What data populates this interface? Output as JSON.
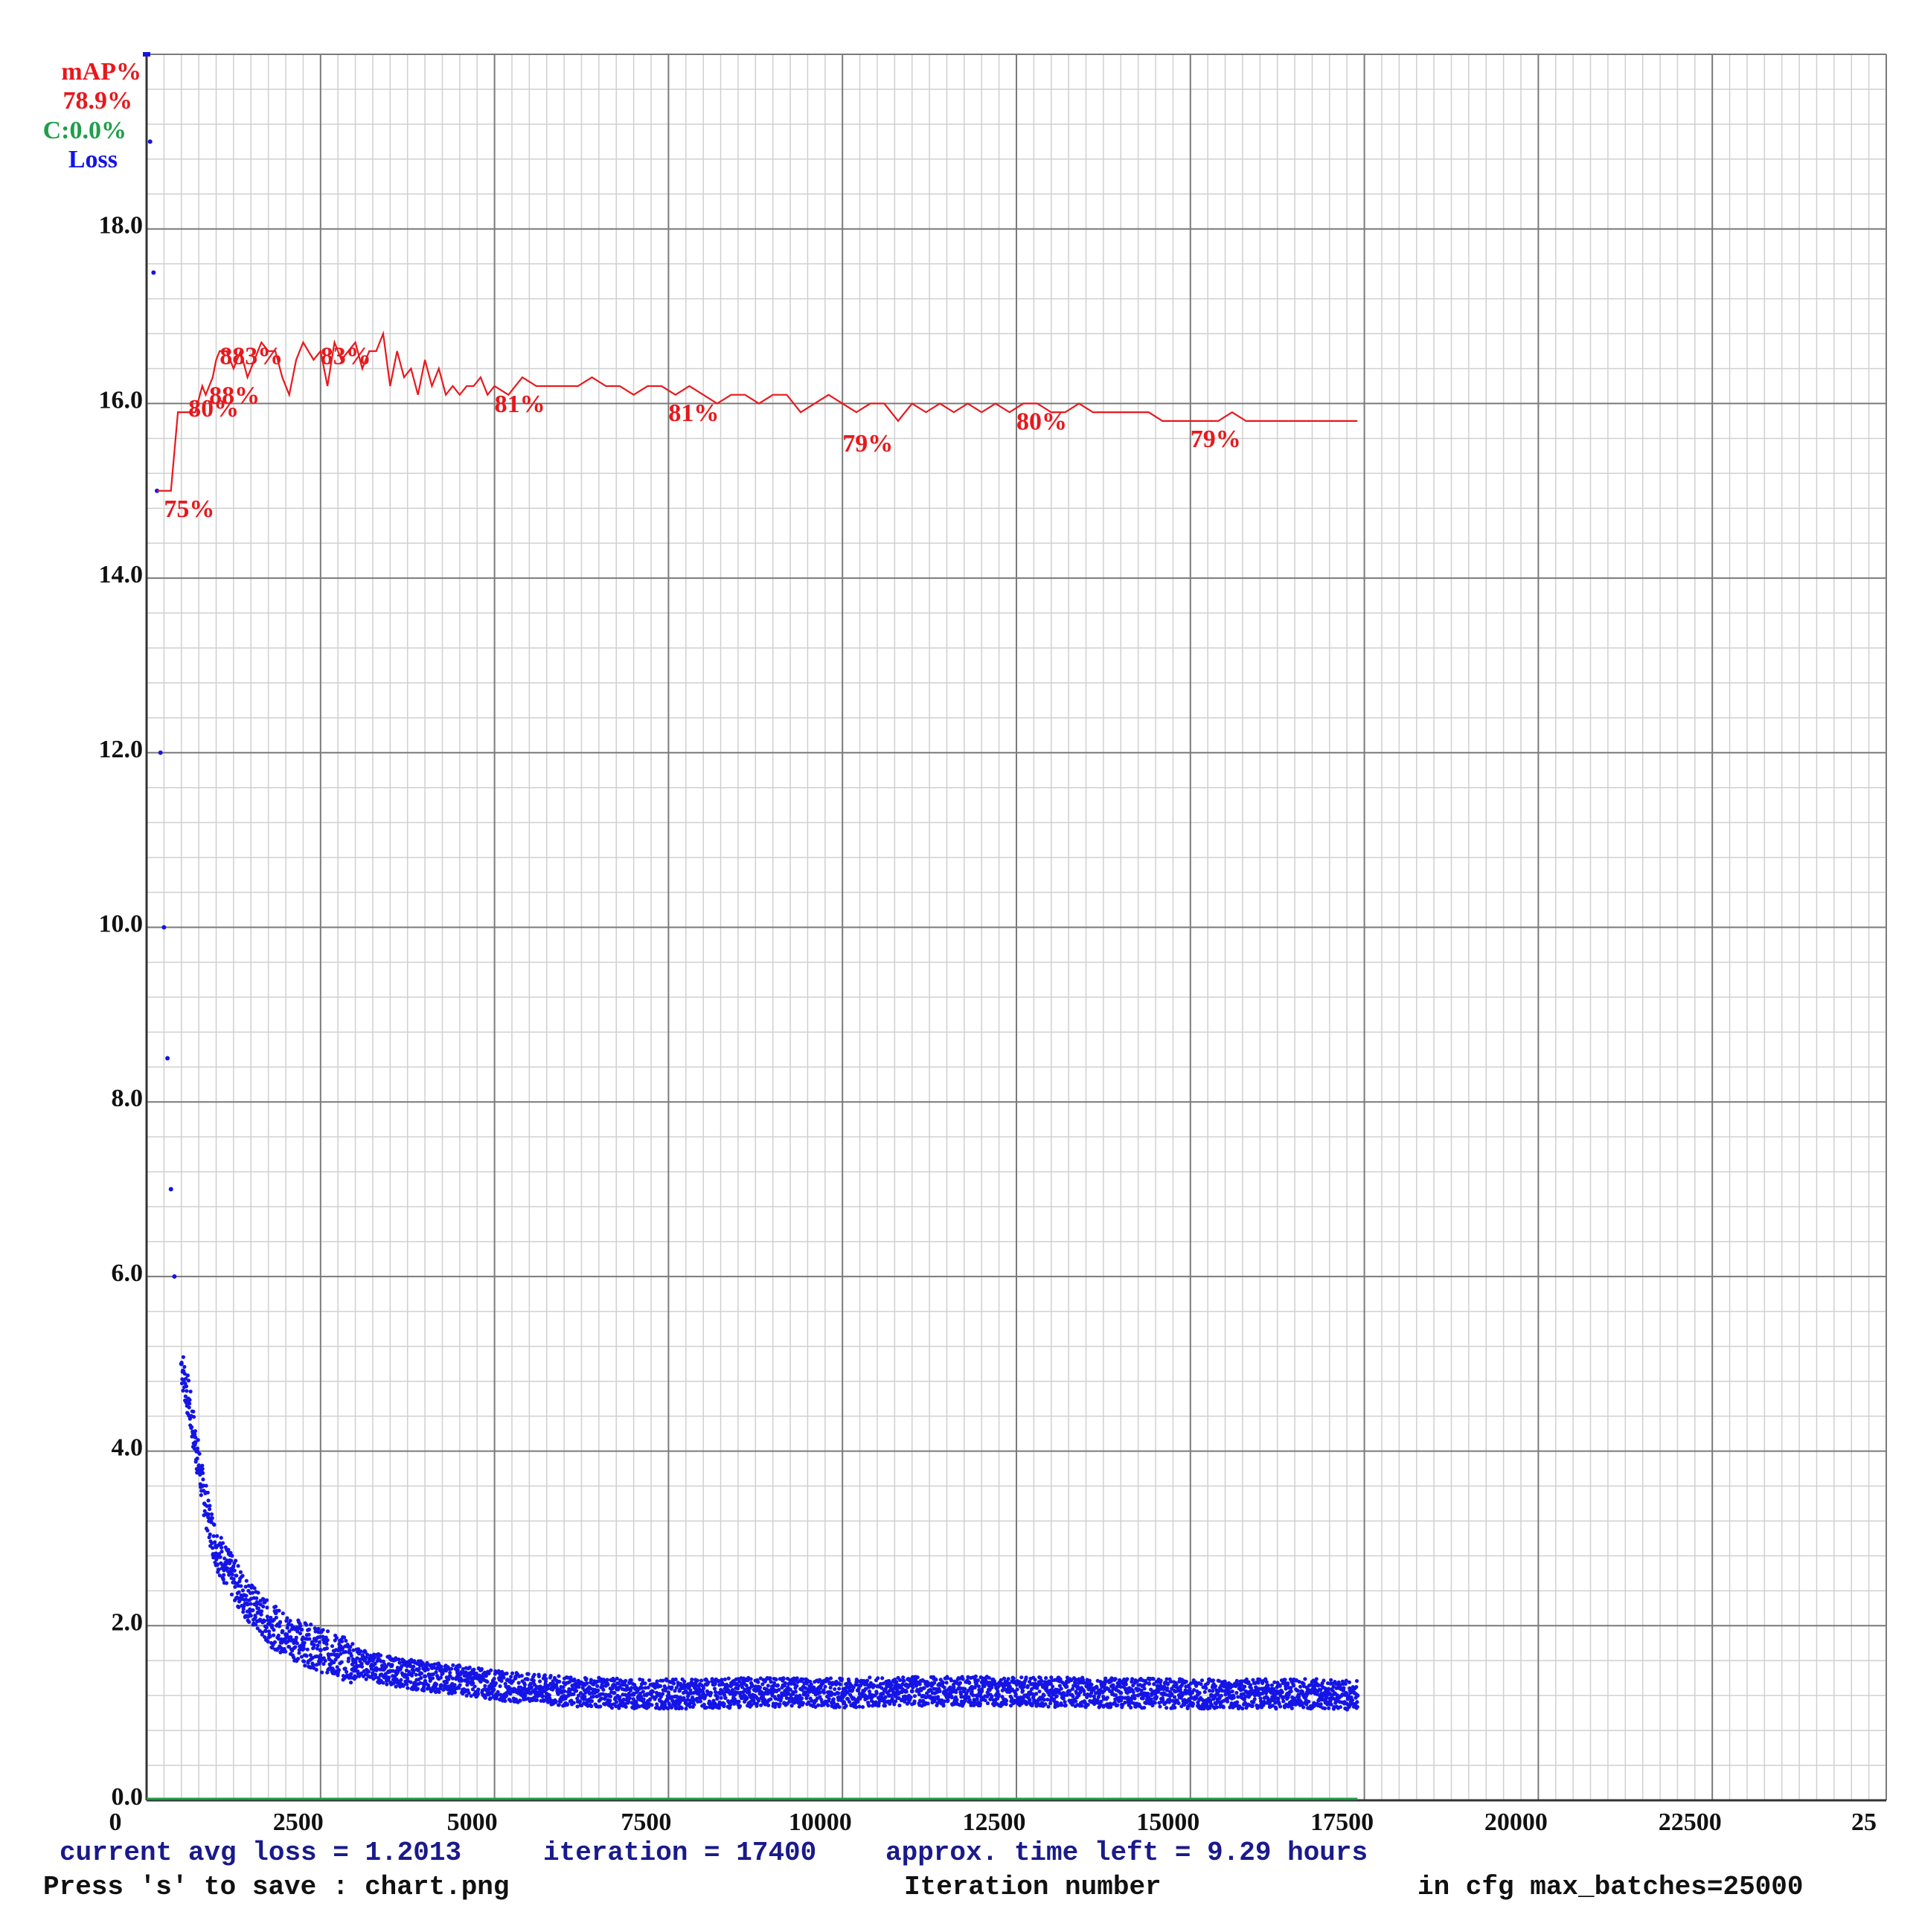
{
  "colors": {
    "map": "#e8181c",
    "loss": "#1414e6",
    "accuracy": "#1f9e4a",
    "footer_info": "#1a1a8c",
    "text": "#111111",
    "grid_major": "#7a7a7a",
    "grid_minor": "#d0d0d0"
  },
  "legend": {
    "map_label": "mAP%",
    "map_value": "78.9%",
    "accuracy_label": "C:0.0%",
    "loss_label": "Loss"
  },
  "footer": {
    "avg_loss": "current avg loss = 1.2013",
    "iteration": "iteration = 17400",
    "time_left": "approx. time left = 9.29 hours",
    "save_hint": "Press 's' to save : chart.png",
    "xlabel": "Iteration number",
    "max_batches": "in cfg max_batches=25000"
  },
  "chart_data": {
    "type": "line",
    "xlabel": "Iteration number",
    "xlim": [
      0,
      25000
    ],
    "ylim": [
      0,
      20
    ],
    "grid": true,
    "x_tick_labels": [
      "0",
      "2500",
      "5000",
      "7500",
      "10000",
      "12500",
      "15000",
      "17500",
      "20000",
      "22500",
      "25"
    ],
    "y_tick_labels": [
      "0.0",
      "2.0",
      "4.0",
      "6.0",
      "8.0",
      "10.0",
      "12.0",
      "14.0",
      "16.0",
      "18.0"
    ],
    "series": [
      {
        "name": "Loss",
        "style": "scatter",
        "x": [
          0,
          50,
          100,
          150,
          200,
          250,
          300,
          350,
          400,
          500,
          600,
          700,
          800,
          900,
          1000,
          1200,
          1400,
          1600,
          1800,
          2000,
          2250,
          2500,
          2750,
          3000,
          3500,
          4000,
          4500,
          5000,
          5500,
          6000,
          7000,
          8000,
          9000,
          10000,
          11000,
          12000,
          13000,
          14000,
          15000,
          16000,
          17000,
          17400
        ],
        "y": [
          20,
          19,
          17.5,
          15,
          12,
          10,
          8.5,
          7,
          6,
          5,
          4.6,
          4.1,
          3.6,
          3.2,
          2.9,
          2.6,
          2.35,
          2.15,
          2.0,
          1.9,
          1.8,
          1.72,
          1.65,
          1.58,
          1.48,
          1.42,
          1.38,
          1.32,
          1.28,
          1.25,
          1.22,
          1.22,
          1.24,
          1.23,
          1.25,
          1.25,
          1.24,
          1.23,
          1.22,
          1.22,
          1.22,
          1.2
        ]
      },
      {
        "name": "mAP%",
        "style": "line",
        "x": [
          150,
          350,
          450,
          550,
          650,
          700,
          800,
          850,
          900,
          950,
          1000,
          1050,
          1150,
          1250,
          1350,
          1450,
          1550,
          1650,
          1750,
          1850,
          1950,
          2050,
          2150,
          2250,
          2400,
          2500,
          2600,
          2700,
          2800,
          2900,
          3000,
          3100,
          3200,
          3300,
          3400,
          3500,
          3600,
          3700,
          3800,
          3900,
          4000,
          4100,
          4200,
          4300,
          4400,
          4500,
          4600,
          4700,
          4800,
          4900,
          5000,
          5200,
          5400,
          5600,
          5800,
          6000,
          6200,
          6400,
          6600,
          6800,
          7000,
          7200,
          7400,
          7600,
          7800,
          8000,
          8200,
          8400,
          8600,
          8800,
          9000,
          9200,
          9400,
          9600,
          9800,
          10000,
          10200,
          10400,
          10600,
          10800,
          11000,
          11200,
          11400,
          11600,
          11800,
          12000,
          12200,
          12400,
          12600,
          12800,
          13000,
          13200,
          13400,
          13600,
          13800,
          14000,
          14200,
          14400,
          14600,
          14800,
          15000,
          15200,
          15400,
          15600,
          15800,
          16000,
          16200,
          16400,
          16600,
          16800,
          17000,
          17200,
          17400
        ],
        "y": [
          15.0,
          15.0,
          15.9,
          15.9,
          15.9,
          15.9,
          16.2,
          16.1,
          16.2,
          16.3,
          16.5,
          16.6,
          16.6,
          16.4,
          16.6,
          16.3,
          16.5,
          16.7,
          16.6,
          16.6,
          16.3,
          16.1,
          16.5,
          16.7,
          16.5,
          16.6,
          16.2,
          16.7,
          16.5,
          16.6,
          16.7,
          16.4,
          16.6,
          16.6,
          16.8,
          16.2,
          16.6,
          16.3,
          16.4,
          16.1,
          16.5,
          16.2,
          16.4,
          16.1,
          16.2,
          16.1,
          16.2,
          16.2,
          16.3,
          16.1,
          16.2,
          16.1,
          16.3,
          16.2,
          16.2,
          16.2,
          16.2,
          16.3,
          16.2,
          16.2,
          16.1,
          16.2,
          16.2,
          16.1,
          16.2,
          16.1,
          16.0,
          16.1,
          16.1,
          16.0,
          16.1,
          16.1,
          15.9,
          16.0,
          16.1,
          16.0,
          15.9,
          16.0,
          16.0,
          15.8,
          16.0,
          15.9,
          16.0,
          15.9,
          16.0,
          15.9,
          16.0,
          15.9,
          16.0,
          16.0,
          15.9,
          15.9,
          16.0,
          15.9,
          15.9,
          15.9,
          15.9,
          15.9,
          15.8,
          15.8,
          15.8,
          15.8,
          15.8,
          15.9,
          15.8,
          15.8,
          15.8,
          15.8,
          15.8,
          15.8,
          15.8,
          15.8,
          15.8
        ]
      },
      {
        "name": "C:0.0%",
        "style": "line",
        "x": [
          0,
          17400
        ],
        "y": [
          0,
          0
        ]
      }
    ],
    "annotations": [
      {
        "text": "75%",
        "x": 250,
        "y": 14.7
      },
      {
        "text": "80%",
        "x": 600,
        "y": 15.85
      },
      {
        "text": "88%",
        "x": 900,
        "y": 16.0
      },
      {
        "text": "883%",
        "x": 1050,
        "y": 16.45
      },
      {
        "text": "83%",
        "x": 2500,
        "y": 16.45
      },
      {
        "text": "81%",
        "x": 5000,
        "y": 15.9
      },
      {
        "text": "81%",
        "x": 7500,
        "y": 15.8
      },
      {
        "text": "79%",
        "x": 10000,
        "y": 15.45
      },
      {
        "text": "80%",
        "x": 12500,
        "y": 15.7
      },
      {
        "text": "79%",
        "x": 15000,
        "y": 15.5
      }
    ]
  }
}
